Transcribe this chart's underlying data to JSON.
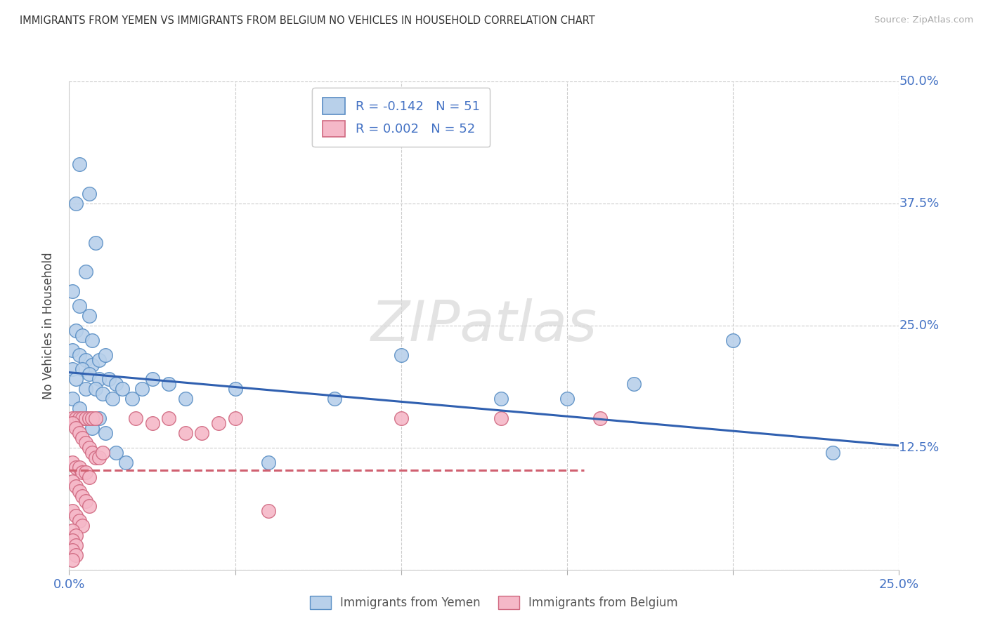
{
  "title": "IMMIGRANTS FROM YEMEN VS IMMIGRANTS FROM BELGIUM NO VEHICLES IN HOUSEHOLD CORRELATION CHART",
  "source": "Source: ZipAtlas.com",
  "ylabel": "No Vehicles in Household",
  "xlim": [
    0.0,
    0.25
  ],
  "ylim": [
    0.0,
    0.5
  ],
  "xticks": [
    0.0,
    0.05,
    0.1,
    0.15,
    0.2,
    0.25
  ],
  "xtick_labels": [
    "0.0%",
    "",
    "",
    "",
    "",
    "25.0%"
  ],
  "yticks": [
    0.0,
    0.125,
    0.25,
    0.375,
    0.5
  ],
  "ytick_labels_right": [
    "",
    "12.5%",
    "25.0%",
    "37.5%",
    "50.0%"
  ],
  "legend_entries": [
    {
      "label": "R = -0.142   N = 51",
      "facecolor": "#b8d0ea",
      "edgecolor": "#5a8cc4"
    },
    {
      "label": "R = 0.002   N = 52",
      "facecolor": "#f5b8c8",
      "edgecolor": "#d06880"
    }
  ],
  "legend_labels_bottom": [
    "Immigrants from Yemen",
    "Immigrants from Belgium"
  ],
  "watermark": "ZIPatlas",
  "scatter_yemen": [
    [
      0.003,
      0.415
    ],
    [
      0.006,
      0.385
    ],
    [
      0.008,
      0.335
    ],
    [
      0.002,
      0.375
    ],
    [
      0.005,
      0.305
    ],
    [
      0.001,
      0.285
    ],
    [
      0.003,
      0.27
    ],
    [
      0.006,
      0.26
    ],
    [
      0.002,
      0.245
    ],
    [
      0.004,
      0.24
    ],
    [
      0.007,
      0.235
    ],
    [
      0.001,
      0.225
    ],
    [
      0.003,
      0.22
    ],
    [
      0.005,
      0.215
    ],
    [
      0.007,
      0.21
    ],
    [
      0.009,
      0.215
    ],
    [
      0.011,
      0.22
    ],
    [
      0.001,
      0.205
    ],
    [
      0.004,
      0.205
    ],
    [
      0.006,
      0.2
    ],
    [
      0.009,
      0.195
    ],
    [
      0.012,
      0.195
    ],
    [
      0.014,
      0.19
    ],
    [
      0.002,
      0.195
    ],
    [
      0.005,
      0.185
    ],
    [
      0.008,
      0.185
    ],
    [
      0.01,
      0.18
    ],
    [
      0.013,
      0.175
    ],
    [
      0.016,
      0.185
    ],
    [
      0.019,
      0.175
    ],
    [
      0.022,
      0.185
    ],
    [
      0.025,
      0.195
    ],
    [
      0.001,
      0.175
    ],
    [
      0.003,
      0.165
    ],
    [
      0.005,
      0.155
    ],
    [
      0.007,
      0.145
    ],
    [
      0.009,
      0.155
    ],
    [
      0.011,
      0.14
    ],
    [
      0.014,
      0.12
    ],
    [
      0.017,
      0.11
    ],
    [
      0.03,
      0.19
    ],
    [
      0.035,
      0.175
    ],
    [
      0.05,
      0.185
    ],
    [
      0.06,
      0.11
    ],
    [
      0.08,
      0.175
    ],
    [
      0.1,
      0.22
    ],
    [
      0.13,
      0.175
    ],
    [
      0.15,
      0.175
    ],
    [
      0.17,
      0.19
    ],
    [
      0.2,
      0.235
    ],
    [
      0.23,
      0.12
    ]
  ],
  "scatter_belgium": [
    [
      0.001,
      0.155
    ],
    [
      0.002,
      0.155
    ],
    [
      0.003,
      0.155
    ],
    [
      0.004,
      0.155
    ],
    [
      0.005,
      0.155
    ],
    [
      0.006,
      0.155
    ],
    [
      0.007,
      0.155
    ],
    [
      0.008,
      0.155
    ],
    [
      0.001,
      0.15
    ],
    [
      0.002,
      0.145
    ],
    [
      0.003,
      0.14
    ],
    [
      0.004,
      0.135
    ],
    [
      0.005,
      0.13
    ],
    [
      0.006,
      0.125
    ],
    [
      0.007,
      0.12
    ],
    [
      0.008,
      0.115
    ],
    [
      0.009,
      0.115
    ],
    [
      0.01,
      0.12
    ],
    [
      0.001,
      0.11
    ],
    [
      0.002,
      0.105
    ],
    [
      0.003,
      0.105
    ],
    [
      0.004,
      0.1
    ],
    [
      0.005,
      0.1
    ],
    [
      0.006,
      0.095
    ],
    [
      0.001,
      0.09
    ],
    [
      0.002,
      0.085
    ],
    [
      0.003,
      0.08
    ],
    [
      0.004,
      0.075
    ],
    [
      0.005,
      0.07
    ],
    [
      0.006,
      0.065
    ],
    [
      0.001,
      0.06
    ],
    [
      0.002,
      0.055
    ],
    [
      0.003,
      0.05
    ],
    [
      0.004,
      0.045
    ],
    [
      0.001,
      0.04
    ],
    [
      0.002,
      0.035
    ],
    [
      0.001,
      0.03
    ],
    [
      0.002,
      0.025
    ],
    [
      0.001,
      0.02
    ],
    [
      0.002,
      0.015
    ],
    [
      0.001,
      0.01
    ],
    [
      0.02,
      0.155
    ],
    [
      0.025,
      0.15
    ],
    [
      0.03,
      0.155
    ],
    [
      0.035,
      0.14
    ],
    [
      0.04,
      0.14
    ],
    [
      0.045,
      0.15
    ],
    [
      0.05,
      0.155
    ],
    [
      0.06,
      0.06
    ],
    [
      0.1,
      0.155
    ],
    [
      0.13,
      0.155
    ],
    [
      0.16,
      0.155
    ]
  ],
  "trend_yemen": {
    "x_start": 0.0,
    "y_start": 0.202,
    "x_end": 0.25,
    "y_end": 0.127
  },
  "trend_belgium": {
    "x_start": 0.0,
    "y_start": 0.102,
    "x_end": 0.155,
    "y_end": 0.102
  },
  "background_color": "#ffffff",
  "grid_color": "#cccccc",
  "scatter_color_yemen": "#b8d0ea",
  "scatter_edge_yemen": "#5a8fc5",
  "scatter_color_belgium": "#f5b8c8",
  "scatter_edge_belgium": "#d06880",
  "trend_color_yemen": "#3060b0",
  "trend_color_belgium": "#d06070"
}
